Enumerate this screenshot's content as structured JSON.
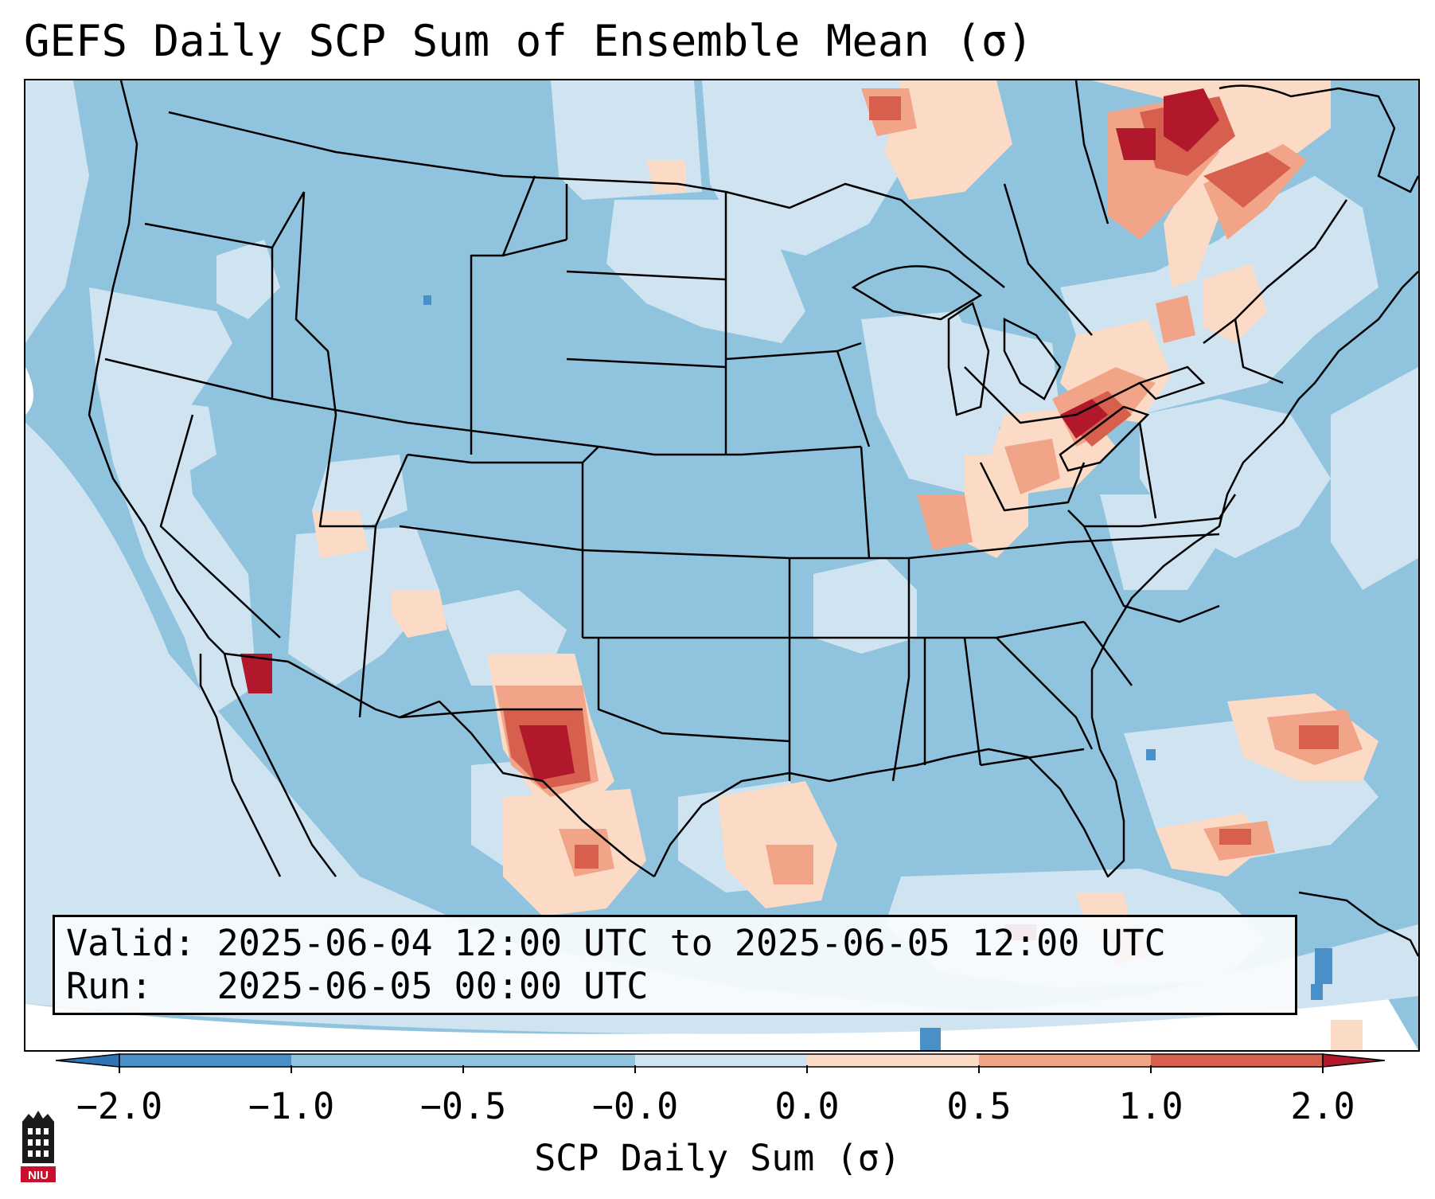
{
  "title": "GEFS Daily SCP Sum of Ensemble Mean (σ)",
  "info": {
    "valid_label": "Valid:",
    "valid_value": "2025-06-04 12:00 UTC to 2025-06-05 12:00 UTC",
    "run_label": "Run:",
    "run_value": "2025-06-05 00:00 UTC"
  },
  "colorbar": {
    "label": "SCP Daily Sum (σ)",
    "ticks": [
      "−2.0",
      "−1.0",
      "−0.5",
      "−0.0",
      "0.0",
      "0.5",
      "1.0",
      "2.0"
    ],
    "colors": {
      "extend_low": "#2f75b5",
      "neg2_neg1": "#4a90c8",
      "neg1_neg05": "#90c4de",
      "neg05_0": "#cfe3f0",
      "zero_05": "#fbdac6",
      "half_1": "#f1a487",
      "one_2": "#d6604d",
      "extend_high": "#b2182b"
    }
  },
  "logo": {
    "text": "NIU",
    "color": "#c8102e"
  },
  "map": {
    "projection": "Lambert Conformal, CONUS",
    "background_value_band": "-1.0 to -0.5",
    "hotspots": [
      {
        "region": "West Texas / SE New Mexico",
        "value": "> 2.0"
      },
      {
        "region": "Lake Erie / Western New York",
        "value": "> 2.0"
      },
      {
        "region": "Quebec",
        "value": "> 2.0"
      },
      {
        "region": "Baja California / Salton Sea",
        "value": "> 2.0"
      },
      {
        "region": "South Florida",
        "value": "1.0 to 2.0"
      },
      {
        "region": "Western Atlantic",
        "value": "1.0 to 2.0"
      }
    ]
  }
}
